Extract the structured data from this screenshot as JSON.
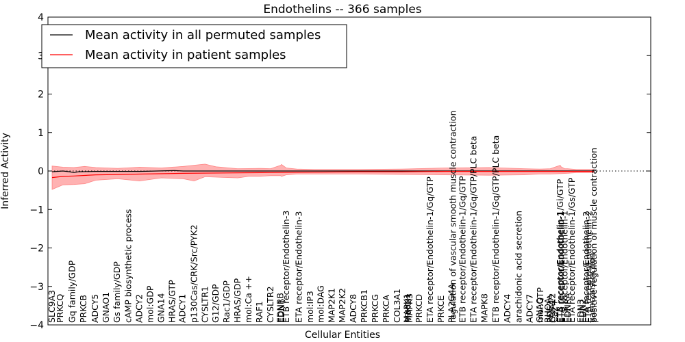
{
  "chart_data": {
    "type": "line",
    "title": "Endothelins -- 366 samples",
    "xlabel": "Cellular Entities",
    "ylabel": "Inferred Activity",
    "ylim": [
      -4,
      4
    ],
    "yticks": [
      "4",
      "3",
      "2",
      "1",
      "0",
      "−1",
      "−2",
      "−3",
      "−4"
    ],
    "legend": {
      "placement": "top-left",
      "entries": [
        {
          "label": "Mean activity in all permuted samples",
          "color": "#000000"
        },
        {
          "label": "Mean activity in patient samples",
          "color": "#ff0000"
        }
      ]
    },
    "colors": {
      "band": "#ff6666",
      "patient": "#ff0000",
      "permuted": "#000000",
      "zero_line": "#000000"
    },
    "entities": [
      {
        "label": "SLC9A3",
        "x": 0.0
      },
      {
        "label": "PRKCQ",
        "x": 1.9
      },
      {
        "label": "Gq family/GDP",
        "x": 4.6
      },
      {
        "label": "PRKCB",
        "x": 7.2
      },
      {
        "label": "ADCY5",
        "x": 9.9
      },
      {
        "label": "GNAO1",
        "x": 12.4
      },
      {
        "label": "Gs family/GDP",
        "x": 14.9
      },
      {
        "label": "cAMP biosynthetic process",
        "x": 17.5
      },
      {
        "label": "ADCY2",
        "x": 20.0
      },
      {
        "label": "mol:GDP",
        "x": 22.5
      },
      {
        "label": "GNA14",
        "x": 25.0
      },
      {
        "label": "HRAS/GTP",
        "x": 27.5
      },
      {
        "label": "ADCY1",
        "x": 29.9
      },
      {
        "label": "p130Cas/CRK/Src/PYK2",
        "x": 32.5
      },
      {
        "label": "CYSLTR1",
        "x": 35.0
      },
      {
        "label": "G12/GDP",
        "x": 37.5
      },
      {
        "label": "Rac1/GDP",
        "x": 40.0
      },
      {
        "label": "HRAS/GDP",
        "x": 42.5
      },
      {
        "label": "mol:Ca ++",
        "x": 45.0
      },
      {
        "label": "RAF1",
        "x": 47.5
      },
      {
        "label": "CYSLTR2",
        "x": 50.0
      },
      {
        "label": "EDNRB",
        "x": 52.3
      },
      {
        "label": "EDN1",
        "x": 52.5
      },
      {
        "label": "ETB receptor/Endothelin-3",
        "x": 53.6
      },
      {
        "label": "ETA receptor/Endothelin-3",
        "x": 56.5
      },
      {
        "label": "mol:IP3",
        "x": 59.1
      },
      {
        "label": "mol:DAG",
        "x": 61.5
      },
      {
        "label": "MAP2K1",
        "x": 64.0
      },
      {
        "label": "MAP2K2",
        "x": 66.5
      },
      {
        "label": "ADCY8",
        "x": 69.0
      },
      {
        "label": "PRKCB1",
        "x": 71.5
      },
      {
        "label": "PRKCG",
        "x": 74.0
      },
      {
        "label": "PRKCA",
        "x": 76.5
      },
      {
        "label": "COL3A1",
        "x": 79.0
      },
      {
        "label": "MAPK1",
        "x": 81.3
      },
      {
        "label": "PRKCH",
        "x": 81.5
      },
      {
        "label": "MAPK3",
        "x": 81.8
      },
      {
        "label": "PRKCD",
        "x": 84.0
      },
      {
        "label": "ETA receptor/Endothelin-1/Gq/GTP",
        "x": 86.5
      },
      {
        "label": "PRKCE",
        "x": 89.0
      },
      {
        "label": "PLA2G4A",
        "x": 91.5
      },
      {
        "label": "regulation of vascular smooth muscle contraction",
        "x": 91.8
      },
      {
        "label": "ETB receptor/Endothelin-1/Gq/GTP",
        "x": 94.0
      },
      {
        "label": "ETA receptor/Endothelin-1/Gq/GTP/PLC beta",
        "x": 96.5
      },
      {
        "label": "MAPK8",
        "x": 99.0
      },
      {
        "label": "ETB receptor/Endothelin-1/Gq/GTP/PLC beta",
        "x": 101.6
      },
      {
        "label": "ADCY4",
        "x": 104.2
      },
      {
        "label": "arachidonic acid secretion",
        "x": 106.8
      },
      {
        "label": "ADCY7",
        "x": 109.3
      },
      {
        "label": "GNAQ",
        "x": 111.6
      },
      {
        "label": "mol:GTP",
        "x": 111.8
      },
      {
        "label": "RHOA",
        "x": 113.5
      },
      {
        "label": "PDE2A",
        "x": 114.0
      },
      {
        "label": "GNA12",
        "x": 114.5
      },
      {
        "label": "Ca2+",
        "x": 115.0
      },
      {
        "label": "ETB receptor/Endothelin-1/Gi/GTP",
        "x": 116.3
      },
      {
        "label": "ETA receptor/Endothelin-1",
        "x": 116.5
      },
      {
        "label": "ETB receptor/Endothelin-1",
        "x": 117.3
      },
      {
        "label": "EDNRA",
        "x": 118.0
      },
      {
        "label": "ETA receptor/Endothelin-1/Gs/GTP",
        "x": 119.0
      },
      {
        "label": "EDN3",
        "x": 121.0
      },
      {
        "label": "EDN2",
        "x": 121.5
      },
      {
        "label": "ETA receptor/Endothelin-2",
        "x": 122.3
      },
      {
        "label": "ETB receptor/Endothelin-2",
        "x": 122.8
      },
      {
        "label": "vasoconstriction",
        "x": 123.6
      },
      {
        "label": "positive regulation of muscle contraction",
        "x": 124.0
      }
    ],
    "patient_mean": [
      [
        0.0,
        -0.17
      ],
      [
        2.5,
        -0.14
      ],
      [
        5.0,
        -0.13
      ],
      [
        10.0,
        -0.1
      ],
      [
        15.0,
        -0.09
      ],
      [
        20.0,
        -0.08
      ],
      [
        30.0,
        -0.06
      ],
      [
        40.0,
        -0.05
      ],
      [
        50.0,
        -0.04
      ],
      [
        60.0,
        -0.03
      ],
      [
        70.0,
        -0.02
      ],
      [
        80.0,
        -0.02
      ],
      [
        90.0,
        -0.01
      ],
      [
        100.0,
        -0.01
      ],
      [
        110.0,
        -0.01
      ],
      [
        120.0,
        -0.01
      ],
      [
        124.0,
        -0.01
      ]
    ],
    "permuted_mean": [
      [
        0.0,
        -0.02
      ],
      [
        2.5,
        0.0
      ],
      [
        4.0,
        -0.02
      ],
      [
        5.0,
        -0.04
      ],
      [
        6.0,
        -0.02
      ],
      [
        10.0,
        -0.01
      ],
      [
        20.0,
        -0.01
      ],
      [
        28.0,
        0.01
      ],
      [
        30.0,
        0.0
      ],
      [
        50.0,
        0.0
      ],
      [
        60.0,
        0.0
      ],
      [
        80.0,
        0.0
      ],
      [
        100.0,
        0.0
      ],
      [
        124.0,
        0.0
      ]
    ],
    "band_upper": [
      [
        0.0,
        0.13
      ],
      [
        2.5,
        0.1
      ],
      [
        5.0,
        0.09
      ],
      [
        7.5,
        0.12
      ],
      [
        10.0,
        0.09
      ],
      [
        15.0,
        0.07
      ],
      [
        20.0,
        0.1
      ],
      [
        25.0,
        0.08
      ],
      [
        30.0,
        0.12
      ],
      [
        35.0,
        0.18
      ],
      [
        37.5,
        0.11
      ],
      [
        42.5,
        0.06
      ],
      [
        47.5,
        0.07
      ],
      [
        50.0,
        0.06
      ],
      [
        52.3,
        0.15
      ],
      [
        52.5,
        0.17
      ],
      [
        53.6,
        0.08
      ],
      [
        56.0,
        0.05
      ],
      [
        60.0,
        0.04
      ],
      [
        70.0,
        0.04
      ],
      [
        80.0,
        0.05
      ],
      [
        90.0,
        0.08
      ],
      [
        100.0,
        0.09
      ],
      [
        108.0,
        0.06
      ],
      [
        111.6,
        0.05
      ],
      [
        114.0,
        0.06
      ],
      [
        116.3,
        0.15
      ],
      [
        116.5,
        0.11
      ],
      [
        117.3,
        0.06
      ],
      [
        118.0,
        0.06
      ],
      [
        120.0,
        0.04
      ],
      [
        124.0,
        0.04
      ]
    ],
    "band_lower": [
      [
        124.0,
        -0.04
      ],
      [
        120.0,
        -0.04
      ],
      [
        118.0,
        -0.06
      ],
      [
        116.5,
        -0.07
      ],
      [
        114.0,
        -0.08
      ],
      [
        111.6,
        -0.08
      ],
      [
        108.0,
        -0.1
      ],
      [
        100.0,
        -0.11
      ],
      [
        90.0,
        -0.1
      ],
      [
        80.0,
        -0.09
      ],
      [
        70.0,
        -0.08
      ],
      [
        60.0,
        -0.08
      ],
      [
        56.0,
        -0.08
      ],
      [
        53.6,
        -0.1
      ],
      [
        52.5,
        -0.14
      ],
      [
        52.3,
        -0.12
      ],
      [
        50.0,
        -0.12
      ],
      [
        47.5,
        -0.14
      ],
      [
        45.0,
        -0.14
      ],
      [
        42.5,
        -0.18
      ],
      [
        37.5,
        -0.16
      ],
      [
        35.0,
        -0.15
      ],
      [
        32.5,
        -0.26
      ],
      [
        30.0,
        -0.2
      ],
      [
        25.0,
        -0.18
      ],
      [
        20.0,
        -0.26
      ],
      [
        15.0,
        -0.2
      ],
      [
        10.0,
        -0.24
      ],
      [
        7.5,
        -0.33
      ],
      [
        5.0,
        -0.35
      ],
      [
        2.5,
        -0.36
      ],
      [
        0.0,
        -0.48
      ]
    ]
  }
}
